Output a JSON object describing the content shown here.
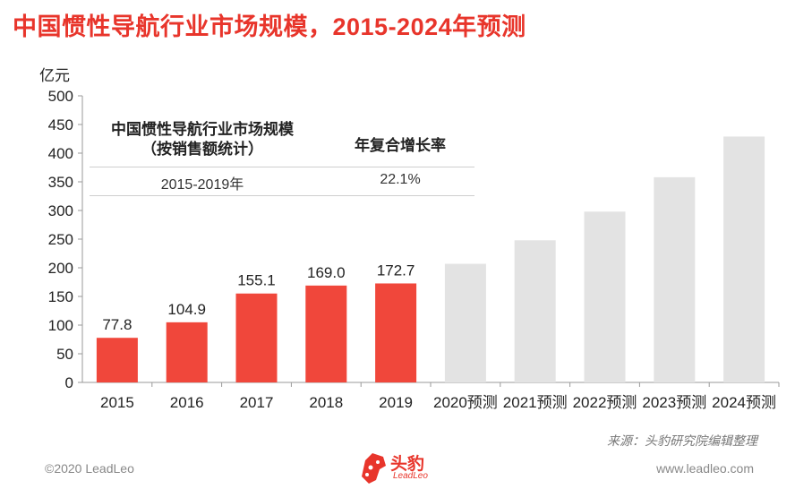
{
  "header": {
    "title": "中国惯性导航行业市场规模，2015-2024年预测"
  },
  "chart_data": {
    "type": "bar",
    "unit_label": "亿元",
    "ylim": [
      0,
      500
    ],
    "yticks": [
      0,
      50,
      100,
      150,
      200,
      250,
      300,
      350,
      400,
      450,
      500
    ],
    "categories": [
      "2015",
      "2016",
      "2017",
      "2018",
      "2019",
      "2020预测",
      "2021预测",
      "2022预测",
      "2023预测",
      "2024预测"
    ],
    "values": [
      77.8,
      104.9,
      155.1,
      169.0,
      172.7,
      207,
      248,
      298,
      358,
      429
    ],
    "labels": [
      "77.8",
      "104.9",
      "155.1",
      "169.0",
      "172.7",
      "",
      "",
      "",
      "",
      ""
    ],
    "colors": {
      "actual": "#f0473b",
      "forecast": "#e3e3e3"
    },
    "grid": false
  },
  "cagr_table": {
    "header_metric": "中国惯性导航行业市场规模（按销售额统计）",
    "header_rate": "年复合增长率",
    "period": "2015-2019年",
    "rate": "22.1%"
  },
  "source": "来源：头豹研究院编辑整理",
  "footer": {
    "copyright": "©2020 LeadLeo",
    "website": "www.leadleo.com"
  },
  "logo": {
    "name": "头豹",
    "sub": "LeadLeo"
  }
}
